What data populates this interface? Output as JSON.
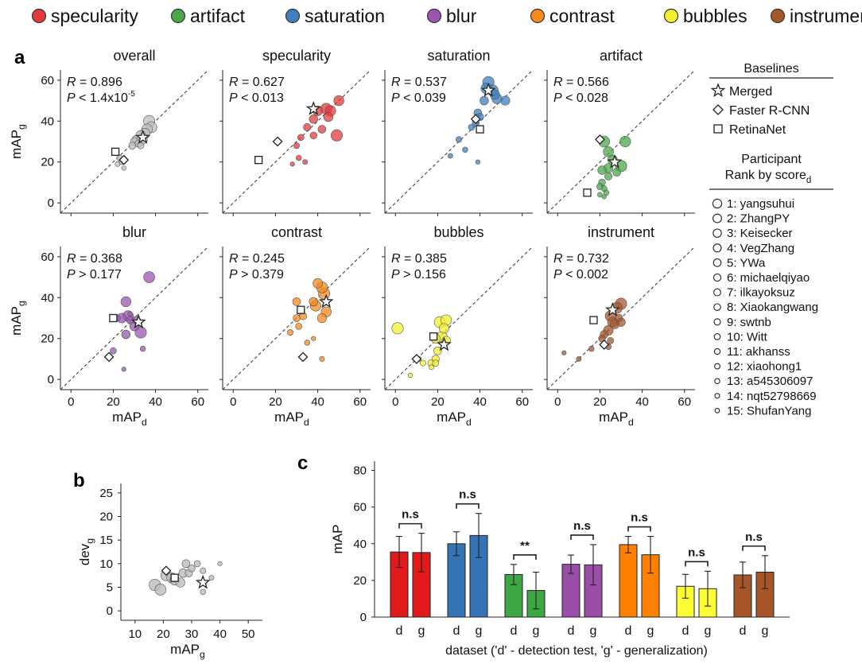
{
  "legend": [
    {
      "name": "specularity",
      "color": "#e03a3c"
    },
    {
      "name": "artifact",
      "color": "#4aa84a"
    },
    {
      "name": "saturation",
      "color": "#3f7fbf"
    },
    {
      "name": "blur",
      "color": "#9a55b0"
    },
    {
      "name": "contrast",
      "color": "#f4891e"
    },
    {
      "name": "bubbles",
      "color": "#f2f02e"
    },
    {
      "name": "instrument",
      "color": "#a5572c"
    }
  ],
  "panel_labels": {
    "a": "a",
    "b": "b",
    "c": "c"
  },
  "axis_labels": {
    "mapg_base": "mAP",
    "mapg_sub": "g",
    "mapd_base": "mAP",
    "mapd_sub": "d",
    "devg_base": "dev",
    "devg_sub": "g",
    "map": "mAP",
    "dataset": "dataset ('d' - detection test, 'g' - generalization)"
  },
  "right_legend": {
    "baselines_title": "Baselines",
    "baselines": [
      "Merged",
      "Faster R-CNN",
      "RetinaNet"
    ],
    "participant_title_1": "Participant",
    "participant_title_2": "Rank by score",
    "participant_title_sub": "d",
    "participants": [
      "1: yangsuhui",
      "2: ZhangPY",
      "3: Keisecker",
      "4: VegZhang",
      "5: YWa",
      "6: michaelqiyao",
      "7: ilkayoksuz",
      "8: Xiaokangwang",
      "9: swtnb",
      "10: Witt",
      "11: akhanss",
      "12: xiaohong1",
      "13: a545306097",
      "14: nqt52798669",
      "15: ShufanYang"
    ]
  },
  "chart_data": [
    {
      "type": "scatter",
      "panel": "a",
      "xlabel": "mAP_d",
      "ylabel": "mAP_g",
      "xlim": [
        -5,
        65
      ],
      "ylim": [
        -5,
        65
      ],
      "xticks": [
        0,
        20,
        40,
        60
      ],
      "yticks": [
        0,
        20,
        40,
        60
      ],
      "subplots": [
        {
          "title": "overall",
          "color": "#bdbdbd",
          "r_text": "R = 0.896",
          "p_text": "P < 1.4x10",
          "p_sup": "-5",
          "points": [
            [
              37,
              40
            ],
            [
              38,
              37
            ],
            [
              36,
              36
            ],
            [
              35,
              34
            ],
            [
              33,
              33
            ],
            [
              34,
              31
            ],
            [
              31,
              31
            ],
            [
              30,
              30
            ],
            [
              32,
              29
            ],
            [
              29,
              28
            ],
            [
              33,
              28
            ],
            [
              23,
              22
            ],
            [
              24,
              20
            ],
            [
              22,
              19
            ],
            [
              25,
              17
            ]
          ],
          "merged": [
            34,
            32
          ],
          "faster": [
            25,
            21
          ],
          "retina": [
            21,
            25
          ]
        },
        {
          "title": "specularity",
          "color": "#e03a3c",
          "r_text": "R = 0.627",
          "p_text": "P < 0.013",
          "points": [
            [
              49,
              33
            ],
            [
              44,
              46
            ],
            [
              46,
              45
            ],
            [
              50,
              50
            ],
            [
              40,
              45
            ],
            [
              45,
              42
            ],
            [
              38,
              41
            ],
            [
              42,
              36
            ],
            [
              35,
              37
            ],
            [
              38,
              33
            ],
            [
              32,
              32
            ],
            [
              30,
              28
            ],
            [
              31,
              22
            ],
            [
              34,
              20
            ],
            [
              28,
              19
            ]
          ],
          "merged": [
            38,
            46
          ],
          "faster": [
            21,
            30
          ],
          "retina": [
            12,
            21
          ]
        },
        {
          "title": "saturation",
          "color": "#3f7fbf",
          "r_text": "R = 0.537",
          "p_text": "P < 0.039",
          "points": [
            [
              44,
              59
            ],
            [
              46,
              55
            ],
            [
              43,
              56
            ],
            [
              48,
              51
            ],
            [
              47,
              53
            ],
            [
              52,
              50
            ],
            [
              42,
              50
            ],
            [
              39,
              44
            ],
            [
              40,
              42
            ],
            [
              38,
              39
            ],
            [
              36,
              37
            ],
            [
              30,
              31
            ],
            [
              33,
              26
            ],
            [
              26,
              23
            ],
            [
              39,
              20
            ]
          ],
          "merged": [
            44,
            55
          ],
          "faster": [
            38,
            41
          ],
          "retina": [
            40,
            36
          ]
        },
        {
          "title": "artifact",
          "color": "#4aa84a",
          "r_text": "R = 0.566",
          "p_text": "P < 0.028",
          "points": [
            [
              30,
              18
            ],
            [
              22,
              30
            ],
            [
              32,
              30
            ],
            [
              24,
              25
            ],
            [
              26,
              21
            ],
            [
              24,
              17
            ],
            [
              21,
              16
            ],
            [
              28,
              15
            ],
            [
              24,
              13
            ],
            [
              21,
              10
            ],
            [
              20,
              8
            ],
            [
              22,
              7
            ],
            [
              23,
              5
            ],
            [
              20,
              4
            ],
            [
              22,
              3
            ]
          ],
          "merged": [
            27,
            20
          ],
          "faster": [
            20,
            31
          ],
          "retina": [
            14,
            5
          ]
        },
        {
          "title": "blur",
          "color": "#9a55b0",
          "r_text": "R = 0.368",
          "p_text": "P > 0.177",
          "points": [
            [
              33,
              23
            ],
            [
              37,
              50
            ],
            [
              27,
              31
            ],
            [
              26,
              38
            ],
            [
              24,
              30
            ],
            [
              30,
              26
            ],
            [
              26,
              22
            ],
            [
              31,
              29
            ],
            [
              28,
              29
            ],
            [
              32,
              28
            ],
            [
              20,
              14
            ],
            [
              22,
              30
            ],
            [
              34,
              15
            ],
            [
              28,
              32
            ],
            [
              25,
              5
            ]
          ],
          "merged": [
            32,
            28
          ],
          "faster": [
            18,
            11
          ],
          "retina": [
            20,
            30
          ]
        },
        {
          "title": "contrast",
          "color": "#f4891e",
          "r_text": "R = 0.245",
          "p_text": "P > 0.379",
          "points": [
            [
              43,
              42
            ],
            [
              42,
              45
            ],
            [
              39,
              36
            ],
            [
              44,
              33
            ],
            [
              40,
              47
            ],
            [
              42,
              30
            ],
            [
              38,
              38
            ],
            [
              30,
              38
            ],
            [
              33,
              31
            ],
            [
              30,
              30
            ],
            [
              31,
              26
            ],
            [
              27,
              23
            ],
            [
              35,
              18
            ],
            [
              42,
              10
            ],
            [
              38,
              20
            ]
          ],
          "merged": [
            44,
            38
          ],
          "faster": [
            33,
            11
          ],
          "retina": [
            32,
            34
          ]
        },
        {
          "title": "bubbles",
          "color": "#f2f02e",
          "r_text": "R = 0.385",
          "p_text": "P > 0.156",
          "points": [
            [
              1,
              25
            ],
            [
              21,
              28
            ],
            [
              24,
              29
            ],
            [
              22,
              21
            ],
            [
              23,
              25
            ],
            [
              19,
              20
            ],
            [
              24,
              19
            ],
            [
              20,
              14
            ],
            [
              19,
              10
            ],
            [
              17,
              8
            ],
            [
              19,
              8
            ],
            [
              13,
              8
            ],
            [
              11,
              10
            ],
            [
              17,
              6
            ],
            [
              7,
              2
            ]
          ],
          "merged": [
            23,
            17
          ],
          "faster": [
            10,
            10
          ],
          "retina": [
            18,
            21
          ]
        },
        {
          "title": "instrument",
          "color": "#a5572c",
          "r_text": "R = 0.732",
          "p_text": "P < 0.002",
          "points": [
            [
              30,
              37
            ],
            [
              28,
              35
            ],
            [
              25,
              31
            ],
            [
              26,
              28
            ],
            [
              24,
              24
            ],
            [
              27,
              27
            ],
            [
              30,
              28
            ],
            [
              22,
              22
            ],
            [
              29,
              30
            ],
            [
              21,
              20
            ],
            [
              25,
              19
            ],
            [
              24,
              16
            ],
            [
              16,
              15
            ],
            [
              10,
              10
            ],
            [
              3,
              13
            ]
          ],
          "merged": [
            26,
            34
          ],
          "faster": [
            22,
            17
          ],
          "retina": [
            17,
            29
          ]
        }
      ]
    },
    {
      "type": "scatter",
      "panel": "b",
      "xlabel": "mAP_g",
      "ylabel": "dev_g",
      "xlim": [
        5,
        55
      ],
      "ylim": [
        -2,
        27
      ],
      "xticks": [
        10,
        20,
        30,
        40,
        50
      ],
      "yticks": [
        0,
        5,
        10,
        15,
        20,
        25
      ],
      "points": [
        [
          17,
          5.5
        ],
        [
          19,
          4.5
        ],
        [
          21,
          7.5
        ],
        [
          23,
          7
        ],
        [
          24,
          6.5
        ],
        [
          26,
          6
        ],
        [
          27,
          8
        ],
        [
          28,
          10
        ],
        [
          29,
          8
        ],
        [
          30,
          9
        ],
        [
          32,
          10
        ],
        [
          34,
          8.5
        ],
        [
          34,
          4
        ],
        [
          37,
          7
        ],
        [
          40,
          10
        ]
      ],
      "merged": [
        34,
        6
      ],
      "faster": [
        21,
        8.5
      ],
      "retina": [
        24,
        7
      ]
    },
    {
      "type": "bar",
      "panel": "c",
      "ylabel": "mAP",
      "xlabel": "dataset ('d' - detection test, 'g' - generalization)",
      "ylim": [
        0,
        85
      ],
      "yticks": [
        0,
        20,
        40,
        60,
        80
      ],
      "categories": [
        "specularity",
        "saturation",
        "artifact",
        "blur",
        "contrast",
        "bubbles",
        "instrument"
      ],
      "group_labels": [
        "d",
        "g"
      ],
      "series": [
        {
          "d": 35.5,
          "g": 35.2,
          "d_err": 8.5,
          "g_err": 10.5,
          "sig": "n.s",
          "color": "#e31a1c"
        },
        {
          "d": 40.0,
          "g": 44.5,
          "d_err": 6.5,
          "g_err": 12.0,
          "sig": "n.s",
          "color": "#3574b5"
        },
        {
          "d": 23.2,
          "g": 14.5,
          "d_err": 5.5,
          "g_err": 10.0,
          "sig": "**",
          "color": "#3da743"
        },
        {
          "d": 28.8,
          "g": 28.5,
          "d_err": 5.0,
          "g_err": 11.0,
          "sig": "n.s",
          "color": "#9b4ea8"
        },
        {
          "d": 39.5,
          "g": 34.0,
          "d_err": 4.5,
          "g_err": 10.0,
          "sig": "n.s",
          "color": "#ff7f00"
        },
        {
          "d": 16.8,
          "g": 15.5,
          "d_err": 6.5,
          "g_err": 9.5,
          "sig": "n.s",
          "color": "#fdfd33"
        },
        {
          "d": 23.0,
          "g": 24.5,
          "d_err": 7.0,
          "g_err": 9.0,
          "sig": "n.s",
          "color": "#a65628"
        }
      ]
    }
  ]
}
